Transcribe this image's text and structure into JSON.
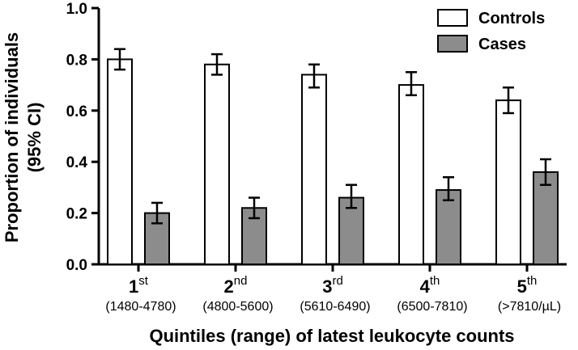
{
  "chart_data": {
    "type": "bar",
    "categories": [
      {
        "label": "1",
        "sup": "st",
        "range": "(1480-4780)"
      },
      {
        "label": "2",
        "sup": "nd",
        "range": "(4800-5600)"
      },
      {
        "label": "3",
        "sup": "rd",
        "range": "(5610-6490)"
      },
      {
        "label": "4",
        "sup": "th",
        "range": "(6500-7810)"
      },
      {
        "label": "5",
        "sup": "th",
        "range": "(>7810/µL)"
      }
    ],
    "series": [
      {
        "name": "Controls",
        "color": "#ffffff",
        "values": [
          0.8,
          0.78,
          0.74,
          0.7,
          0.64
        ],
        "ci_low": [
          0.76,
          0.74,
          0.69,
          0.66,
          0.59
        ],
        "ci_high": [
          0.84,
          0.82,
          0.78,
          0.75,
          0.69
        ]
      },
      {
        "name": "Cases",
        "color": "#8c8c8c",
        "values": [
          0.2,
          0.22,
          0.26,
          0.29,
          0.36
        ],
        "ci_low": [
          0.16,
          0.18,
          0.22,
          0.25,
          0.31
        ],
        "ci_high": [
          0.24,
          0.26,
          0.31,
          0.34,
          0.41
        ]
      }
    ],
    "ylabel_line1": "Proportion of individuals",
    "ylabel_line2": "(95% CI)",
    "xlabel": "Quintiles (range) of latest leukocyte counts",
    "ylim": [
      0,
      1.0
    ],
    "yticks": [
      "0.0",
      "0.2",
      "0.4",
      "0.6",
      "0.8",
      "1.0"
    ],
    "legend_position": "top-right",
    "grid": false
  }
}
